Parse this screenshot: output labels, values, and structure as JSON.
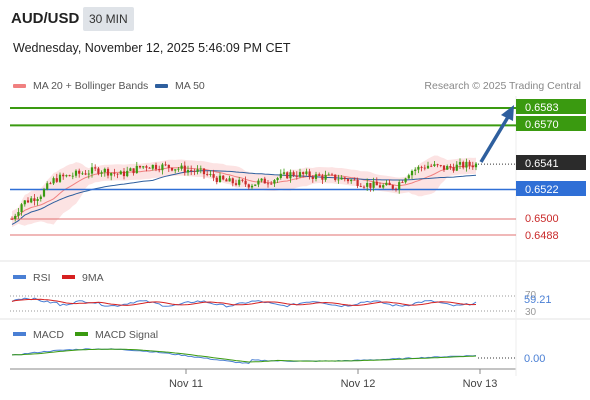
{
  "header": {
    "symbol": "AUD/USD",
    "timeframe": "30 MIN",
    "datetime": "Wednesday, November 12, 2025 5:46:09 PM CET",
    "credit": "Research © 2025 Trading Central"
  },
  "chart_data": {
    "type": "candlestick",
    "legend": [
      {
        "name": "MA 20 + Bollinger Bands",
        "color": "#f08080"
      },
      {
        "name": "MA 50",
        "color": "#2e5f9e"
      }
    ],
    "x_ticks": [
      "Nov 11",
      "Nov 12",
      "Nov 13"
    ],
    "ylim": [
      0.646,
      0.6595
    ],
    "levels": [
      {
        "label": "0.6583",
        "value": 0.6583,
        "color": "#3a9a10",
        "kind": "target"
      },
      {
        "label": "0.6570",
        "value": 0.657,
        "color": "#3a9a10",
        "kind": "target"
      },
      {
        "label": "0.6541",
        "value": 0.6541,
        "color": "#222222",
        "kind": "last"
      },
      {
        "label": "0.6522",
        "value": 0.6522,
        "color": "#2f6fd6",
        "kind": "pivot"
      },
      {
        "label": "0.6500",
        "value": 0.65,
        "color": "#c92a2a",
        "kind": "support"
      },
      {
        "label": "0.6488",
        "value": 0.6488,
        "color": "#c92a2a",
        "kind": "support"
      }
    ],
    "rsi": {
      "legend": [
        {
          "name": "RSI",
          "color": "#4a7fd4"
        },
        {
          "name": "9MA",
          "color": "#d62020"
        }
      ],
      "levels": [
        "70",
        "30"
      ],
      "value_label": "59.21"
    },
    "macd": {
      "legend": [
        {
          "name": "MACD",
          "color": "#4a7fd4"
        },
        {
          "name": "MACD Signal",
          "color": "#3a9a10"
        }
      ],
      "value_label": "0.00"
    }
  }
}
